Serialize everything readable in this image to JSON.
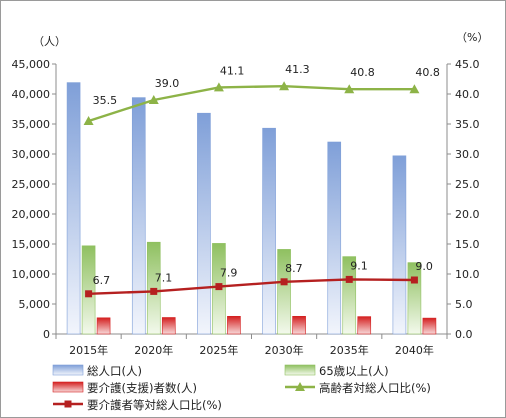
{
  "chart_data": {
    "type": "bar",
    "left_unit": "（人）",
    "right_unit": "（%）",
    "categories": [
      "2015年",
      "2020年",
      "2025年",
      "2030年",
      "2035年",
      "2040年"
    ],
    "ylim_left": [
      0,
      45000
    ],
    "yticks_left": [
      "0",
      "5,000",
      "10,000",
      "15,000",
      "20,000",
      "25,000",
      "30,000",
      "35,000",
      "40,000",
      "45,000"
    ],
    "ylim_right": [
      0,
      45
    ],
    "yticks_right": [
      "0.0",
      "5.0",
      "10.0",
      "15.0",
      "20.0",
      "25.0",
      "30.0",
      "35.0",
      "40.0",
      "45.0"
    ],
    "grid": false,
    "legend_position": "bottom",
    "series": [
      {
        "name": "総人口(人)",
        "kind": "bar",
        "axis": "left",
        "color": "#7f9fd8",
        "values": [
          41900,
          39400,
          36800,
          34300,
          32000,
          29700
        ]
      },
      {
        "name": "65歳以上(人)",
        "kind": "bar",
        "axis": "left",
        "color": "#8fc060",
        "values": [
          14700,
          15300,
          15100,
          14100,
          12900,
          11900
        ]
      },
      {
        "name": "要介護(支援)者数(人)",
        "kind": "bar",
        "axis": "left",
        "color": "#d42020",
        "values": [
          2700,
          2750,
          2950,
          2950,
          2900,
          2650
        ]
      },
      {
        "name": "高齢者対総人口比(%)",
        "kind": "line",
        "axis": "right",
        "color": "#8db347",
        "marker": "triangle",
        "values": [
          35.5,
          39.0,
          41.1,
          41.3,
          40.8,
          40.8
        ],
        "labels": [
          "35.5",
          "39.0",
          "41.1",
          "41.3",
          "40.8",
          "40.8"
        ]
      },
      {
        "name": "要介護者等対総人口比(%)",
        "kind": "line",
        "axis": "right",
        "color": "#b52020",
        "marker": "square",
        "values": [
          6.7,
          7.1,
          7.9,
          8.7,
          9.1,
          9.0
        ],
        "labels": [
          "6.7",
          "7.1",
          "7.9",
          "8.7",
          "9.1",
          "9.0"
        ]
      }
    ]
  }
}
